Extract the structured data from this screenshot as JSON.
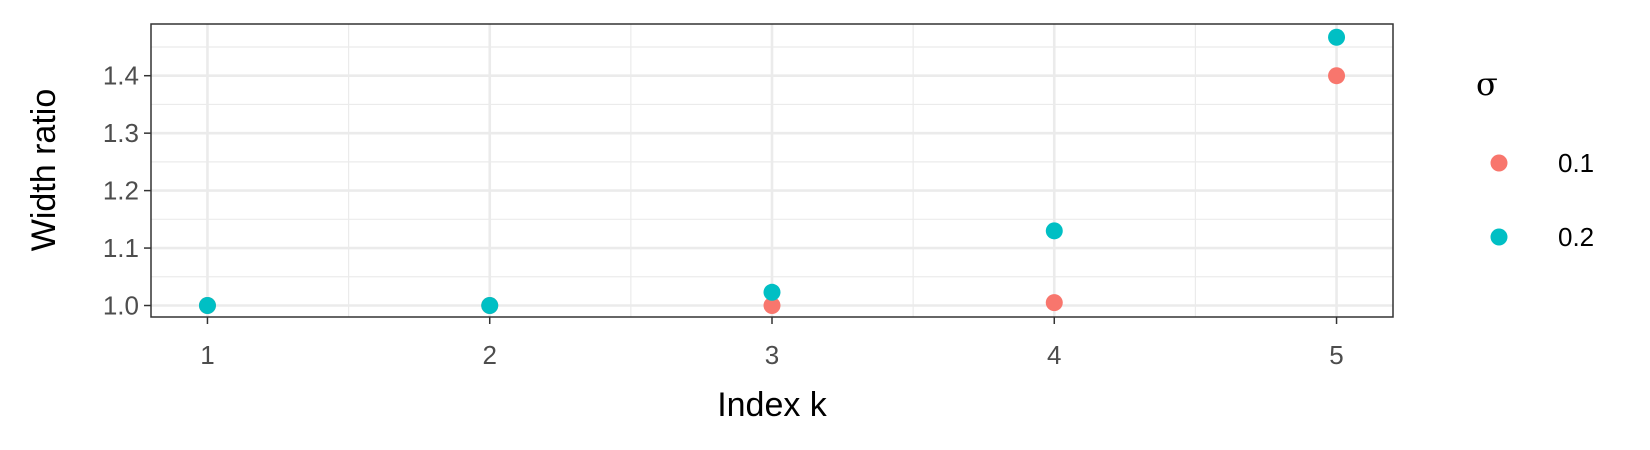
{
  "chart_data": {
    "type": "scatter",
    "title": "",
    "xlabel": "Index k",
    "ylabel": "Width ratio",
    "xlim": [
      0.8,
      5.2
    ],
    "ylim": [
      0.98,
      1.49
    ],
    "x_ticks": [
      1,
      2,
      3,
      4,
      5
    ],
    "y_ticks": [
      1.0,
      1.1,
      1.2,
      1.3,
      1.4
    ],
    "y_tick_labels": [
      "1.0",
      "1.1",
      "1.2",
      "1.3",
      "1.4"
    ],
    "grid": true,
    "legend": {
      "title": "σ",
      "placement": "right"
    },
    "series": [
      {
        "name": "0.1",
        "color": "#F8766D",
        "x": [
          1,
          2,
          3,
          4,
          5
        ],
        "y": [
          1.0,
          1.0,
          1.0,
          1.005,
          1.4
        ]
      },
      {
        "name": "0.2",
        "color": "#00BFC4",
        "x": [
          1,
          2,
          3,
          4,
          5
        ],
        "y": [
          1.0,
          1.0,
          1.023,
          1.13,
          1.467
        ]
      }
    ]
  }
}
